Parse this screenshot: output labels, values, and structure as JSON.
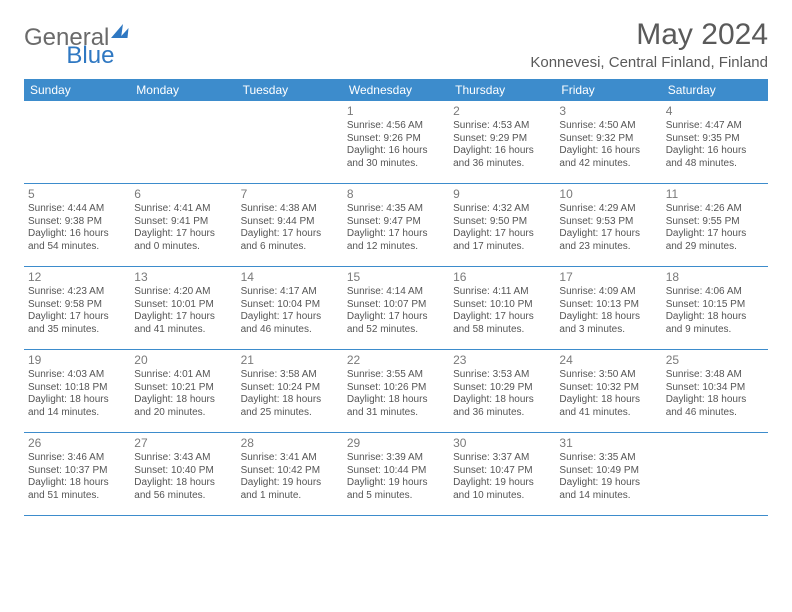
{
  "brand": {
    "part1": "General",
    "part2": "Blue"
  },
  "title": "May 2024",
  "location": "Konnevesi, Central Finland, Finland",
  "colors": {
    "header_bg": "#3d8ccc",
    "header_text": "#ffffff",
    "text": "#555555",
    "rule": "#3d8ccc"
  },
  "weekdays": [
    "Sunday",
    "Monday",
    "Tuesday",
    "Wednesday",
    "Thursday",
    "Friday",
    "Saturday"
  ],
  "weeks": [
    [
      {
        "n": "",
        "sr": "",
        "ss": "",
        "d1": "",
        "d2": ""
      },
      {
        "n": "",
        "sr": "",
        "ss": "",
        "d1": "",
        "d2": ""
      },
      {
        "n": "",
        "sr": "",
        "ss": "",
        "d1": "",
        "d2": ""
      },
      {
        "n": "1",
        "sr": "Sunrise: 4:56 AM",
        "ss": "Sunset: 9:26 PM",
        "d1": "Daylight: 16 hours",
        "d2": "and 30 minutes."
      },
      {
        "n": "2",
        "sr": "Sunrise: 4:53 AM",
        "ss": "Sunset: 9:29 PM",
        "d1": "Daylight: 16 hours",
        "d2": "and 36 minutes."
      },
      {
        "n": "3",
        "sr": "Sunrise: 4:50 AM",
        "ss": "Sunset: 9:32 PM",
        "d1": "Daylight: 16 hours",
        "d2": "and 42 minutes."
      },
      {
        "n": "4",
        "sr": "Sunrise: 4:47 AM",
        "ss": "Sunset: 9:35 PM",
        "d1": "Daylight: 16 hours",
        "d2": "and 48 minutes."
      }
    ],
    [
      {
        "n": "5",
        "sr": "Sunrise: 4:44 AM",
        "ss": "Sunset: 9:38 PM",
        "d1": "Daylight: 16 hours",
        "d2": "and 54 minutes."
      },
      {
        "n": "6",
        "sr": "Sunrise: 4:41 AM",
        "ss": "Sunset: 9:41 PM",
        "d1": "Daylight: 17 hours",
        "d2": "and 0 minutes."
      },
      {
        "n": "7",
        "sr": "Sunrise: 4:38 AM",
        "ss": "Sunset: 9:44 PM",
        "d1": "Daylight: 17 hours",
        "d2": "and 6 minutes."
      },
      {
        "n": "8",
        "sr": "Sunrise: 4:35 AM",
        "ss": "Sunset: 9:47 PM",
        "d1": "Daylight: 17 hours",
        "d2": "and 12 minutes."
      },
      {
        "n": "9",
        "sr": "Sunrise: 4:32 AM",
        "ss": "Sunset: 9:50 PM",
        "d1": "Daylight: 17 hours",
        "d2": "and 17 minutes."
      },
      {
        "n": "10",
        "sr": "Sunrise: 4:29 AM",
        "ss": "Sunset: 9:53 PM",
        "d1": "Daylight: 17 hours",
        "d2": "and 23 minutes."
      },
      {
        "n": "11",
        "sr": "Sunrise: 4:26 AM",
        "ss": "Sunset: 9:55 PM",
        "d1": "Daylight: 17 hours",
        "d2": "and 29 minutes."
      }
    ],
    [
      {
        "n": "12",
        "sr": "Sunrise: 4:23 AM",
        "ss": "Sunset: 9:58 PM",
        "d1": "Daylight: 17 hours",
        "d2": "and 35 minutes."
      },
      {
        "n": "13",
        "sr": "Sunrise: 4:20 AM",
        "ss": "Sunset: 10:01 PM",
        "d1": "Daylight: 17 hours",
        "d2": "and 41 minutes."
      },
      {
        "n": "14",
        "sr": "Sunrise: 4:17 AM",
        "ss": "Sunset: 10:04 PM",
        "d1": "Daylight: 17 hours",
        "d2": "and 46 minutes."
      },
      {
        "n": "15",
        "sr": "Sunrise: 4:14 AM",
        "ss": "Sunset: 10:07 PM",
        "d1": "Daylight: 17 hours",
        "d2": "and 52 minutes."
      },
      {
        "n": "16",
        "sr": "Sunrise: 4:11 AM",
        "ss": "Sunset: 10:10 PM",
        "d1": "Daylight: 17 hours",
        "d2": "and 58 minutes."
      },
      {
        "n": "17",
        "sr": "Sunrise: 4:09 AM",
        "ss": "Sunset: 10:13 PM",
        "d1": "Daylight: 18 hours",
        "d2": "and 3 minutes."
      },
      {
        "n": "18",
        "sr": "Sunrise: 4:06 AM",
        "ss": "Sunset: 10:15 PM",
        "d1": "Daylight: 18 hours",
        "d2": "and 9 minutes."
      }
    ],
    [
      {
        "n": "19",
        "sr": "Sunrise: 4:03 AM",
        "ss": "Sunset: 10:18 PM",
        "d1": "Daylight: 18 hours",
        "d2": "and 14 minutes."
      },
      {
        "n": "20",
        "sr": "Sunrise: 4:01 AM",
        "ss": "Sunset: 10:21 PM",
        "d1": "Daylight: 18 hours",
        "d2": "and 20 minutes."
      },
      {
        "n": "21",
        "sr": "Sunrise: 3:58 AM",
        "ss": "Sunset: 10:24 PM",
        "d1": "Daylight: 18 hours",
        "d2": "and 25 minutes."
      },
      {
        "n": "22",
        "sr": "Sunrise: 3:55 AM",
        "ss": "Sunset: 10:26 PM",
        "d1": "Daylight: 18 hours",
        "d2": "and 31 minutes."
      },
      {
        "n": "23",
        "sr": "Sunrise: 3:53 AM",
        "ss": "Sunset: 10:29 PM",
        "d1": "Daylight: 18 hours",
        "d2": "and 36 minutes."
      },
      {
        "n": "24",
        "sr": "Sunrise: 3:50 AM",
        "ss": "Sunset: 10:32 PM",
        "d1": "Daylight: 18 hours",
        "d2": "and 41 minutes."
      },
      {
        "n": "25",
        "sr": "Sunrise: 3:48 AM",
        "ss": "Sunset: 10:34 PM",
        "d1": "Daylight: 18 hours",
        "d2": "and 46 minutes."
      }
    ],
    [
      {
        "n": "26",
        "sr": "Sunrise: 3:46 AM",
        "ss": "Sunset: 10:37 PM",
        "d1": "Daylight: 18 hours",
        "d2": "and 51 minutes."
      },
      {
        "n": "27",
        "sr": "Sunrise: 3:43 AM",
        "ss": "Sunset: 10:40 PM",
        "d1": "Daylight: 18 hours",
        "d2": "and 56 minutes."
      },
      {
        "n": "28",
        "sr": "Sunrise: 3:41 AM",
        "ss": "Sunset: 10:42 PM",
        "d1": "Daylight: 19 hours",
        "d2": "and 1 minute."
      },
      {
        "n": "29",
        "sr": "Sunrise: 3:39 AM",
        "ss": "Sunset: 10:44 PM",
        "d1": "Daylight: 19 hours",
        "d2": "and 5 minutes."
      },
      {
        "n": "30",
        "sr": "Sunrise: 3:37 AM",
        "ss": "Sunset: 10:47 PM",
        "d1": "Daylight: 19 hours",
        "d2": "and 10 minutes."
      },
      {
        "n": "31",
        "sr": "Sunrise: 3:35 AM",
        "ss": "Sunset: 10:49 PM",
        "d1": "Daylight: 19 hours",
        "d2": "and 14 minutes."
      },
      {
        "n": "",
        "sr": "",
        "ss": "",
        "d1": "",
        "d2": ""
      }
    ]
  ]
}
